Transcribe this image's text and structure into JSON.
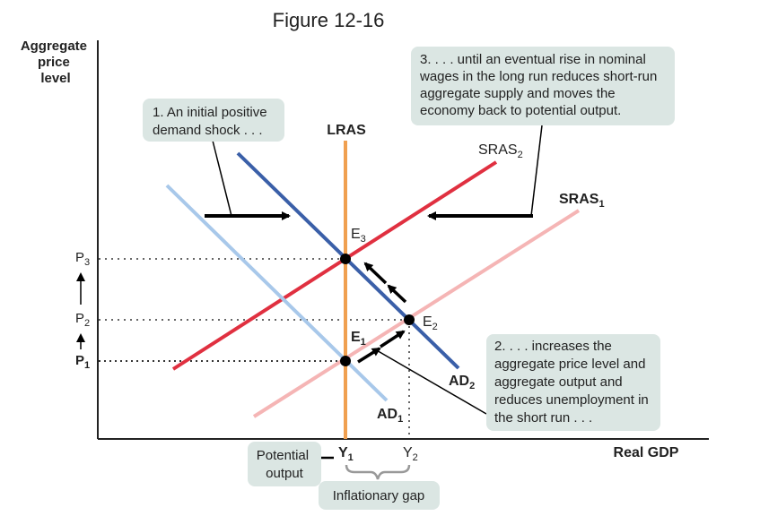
{
  "figure_title": "Figure 12-16",
  "axes": {
    "y_label_lines": [
      "Aggregate",
      "price",
      "level"
    ],
    "x_label": "Real GDP"
  },
  "curves": {
    "lras": "LRAS",
    "sras1": {
      "base": "SRAS",
      "sub": "1"
    },
    "sras2": {
      "base": "SRAS",
      "sub": "2"
    },
    "ad1": {
      "base": "AD",
      "sub": "1"
    },
    "ad2": {
      "base": "AD",
      "sub": "2"
    }
  },
  "points": {
    "e1": {
      "base": "E",
      "sub": "1"
    },
    "e2": {
      "base": "E",
      "sub": "2"
    },
    "e3": {
      "base": "E",
      "sub": "3"
    }
  },
  "price_levels": [
    {
      "base": "P",
      "sub": "3"
    },
    {
      "base": "P",
      "sub": "2"
    },
    {
      "base": "P",
      "sub": "1"
    }
  ],
  "output_levels": [
    {
      "base": "Y",
      "sub": "1"
    },
    {
      "base": "Y",
      "sub": "2"
    }
  ],
  "callouts": {
    "step1": [
      "1. An initial positive",
      "demand shock . . ."
    ],
    "step2": [
      "2. . . . increases the",
      "aggregate price level and",
      "aggregate output and",
      "reduces unemployment in",
      "the short run . . ."
    ],
    "step3": [
      "3. . . . until an eventual rise in nominal",
      "wages in the long run reduces short-run",
      "aggregate supply and moves the",
      "economy back to potential output."
    ],
    "potential_output": [
      "Potential",
      "output"
    ],
    "inflationary_gap": "Inflationary gap"
  },
  "colors": {
    "lras": "#f0a050",
    "sras1": "#f5b5b5",
    "sras2": "#e03040",
    "ad1": "#a8c8ea",
    "ad2": "#3a5fa8",
    "callout_bg": "#dbe6e3"
  }
}
